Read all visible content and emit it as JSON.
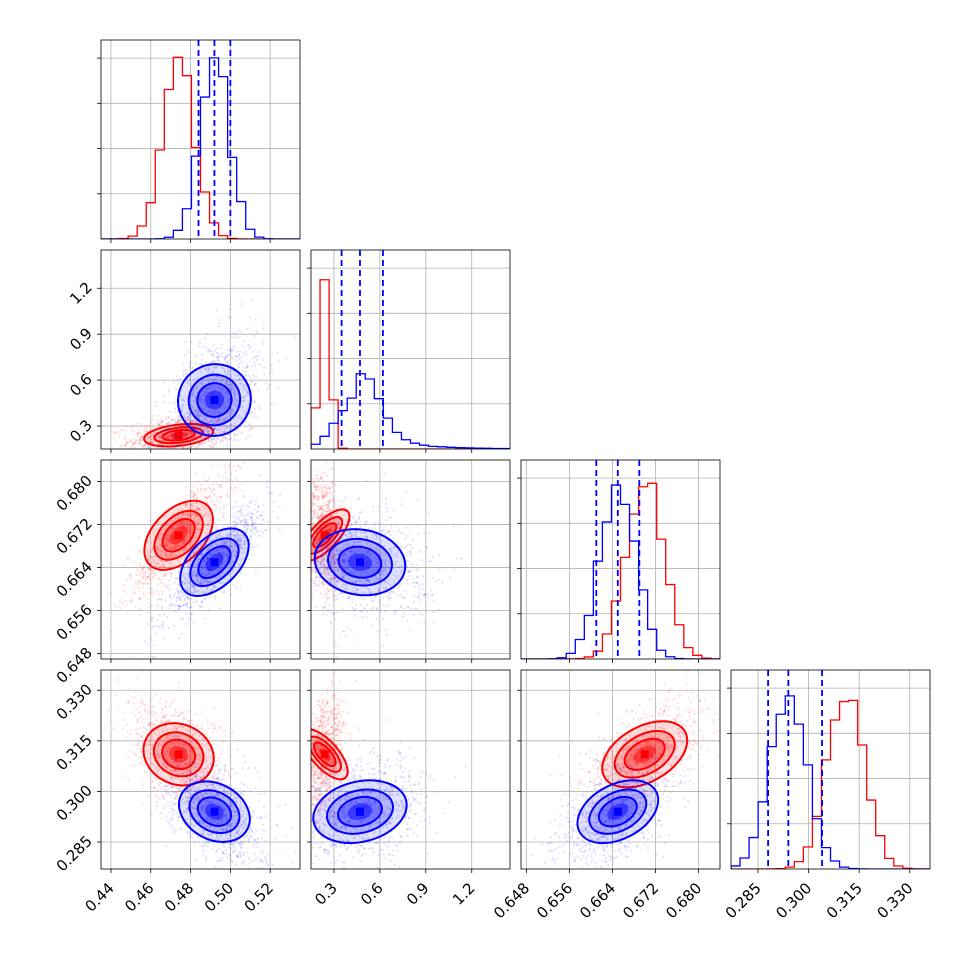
{
  "chart_data": {
    "type": "corner",
    "grid": true,
    "parameters": [
      {
        "ticks": [
          0.44,
          0.46,
          0.48,
          0.5,
          0.52
        ],
        "tick_labels": [
          "0.44",
          "0.46",
          "0.48",
          "0.50",
          "0.52"
        ],
        "range": [
          0.435,
          0.535
        ]
      },
      {
        "ticks": [
          0.3,
          0.6,
          0.9,
          1.2
        ],
        "tick_labels": [
          "0.3",
          "0.6",
          "0.9",
          "1.2"
        ],
        "range": [
          0.15,
          1.45
        ]
      },
      {
        "ticks": [
          0.648,
          0.656,
          0.664,
          0.672,
          0.68
        ],
        "tick_labels": [
          "0.648",
          "0.656",
          "0.664",
          "0.672",
          "0.680"
        ],
        "range": [
          0.647,
          0.684
        ]
      },
      {
        "ticks": [
          0.285,
          0.3,
          0.315,
          0.33
        ],
        "tick_labels": [
          "0.285",
          "0.300",
          "0.315",
          "0.330"
        ],
        "range": [
          0.277,
          0.336
        ]
      }
    ],
    "series": [
      {
        "color": "#ff0000",
        "mean": [
          0.474,
          0.24,
          0.67,
          0.311
        ],
        "sd": [
          0.008,
          0.035,
          0.0035,
          0.0055
        ],
        "scatter_spread": [
          0.009,
          0.045,
          0.004,
          0.006
        ]
      },
      {
        "color": "#0000ff",
        "mean": [
          0.492,
          0.47,
          0.665,
          0.294
        ],
        "sd": [
          0.0075,
          0.13,
          0.0033,
          0.0055
        ],
        "scatter_spread": [
          0.009,
          0.16,
          0.0038,
          0.0058
        ],
        "quantiles": [
          [
            0.484,
            0.492,
            0.5
          ],
          [
            0.35,
            0.47,
            0.62
          ],
          [
            0.661,
            0.665,
            0.669
          ],
          [
            0.288,
            0.294,
            0.304
          ]
        ]
      }
    ],
    "correlations": [
      {
        "i": 1,
        "j": 0,
        "red": 0.3,
        "blue": 0.45
      },
      {
        "i": 2,
        "j": 0,
        "red": 0.85,
        "blue": 0.85
      },
      {
        "i": 2,
        "j": 1,
        "red": -0.3,
        "blue": -0.2
      },
      {
        "i": 3,
        "j": 0,
        "red": -0.4,
        "blue": -0.5
      },
      {
        "i": 3,
        "j": 1,
        "red": 0.3,
        "blue": 0.3
      },
      {
        "i": 3,
        "j": 2,
        "red": 0.6,
        "blue": 0.55
      }
    ]
  }
}
